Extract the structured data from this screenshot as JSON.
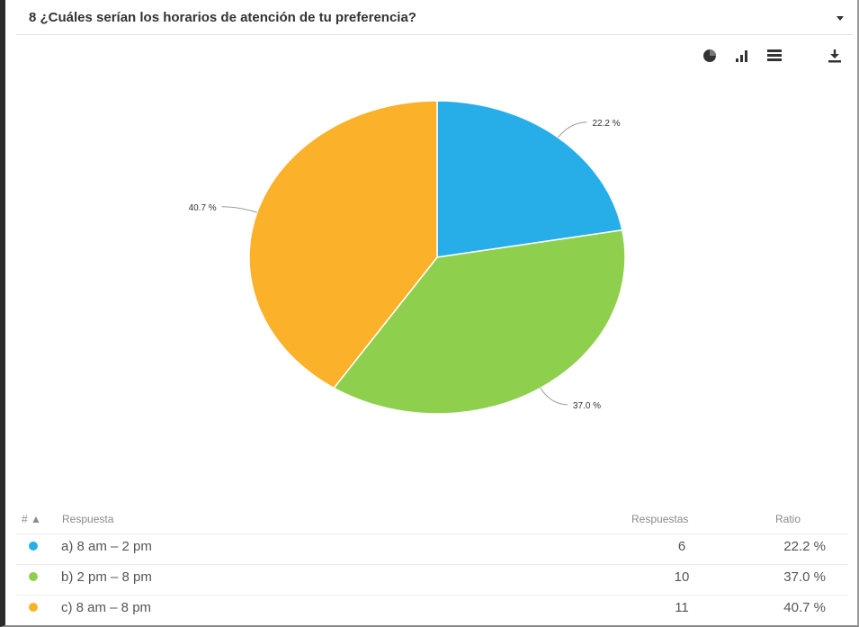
{
  "question": {
    "title": "8 ¿Cuáles serían los horarios de atención de tu preferencia?"
  },
  "toolbar": {
    "icons": [
      "pie-chart-icon",
      "bar-chart-icon",
      "table-icon",
      "download-icon"
    ]
  },
  "chart_data": {
    "type": "pie",
    "categories": [
      "a) 8 am – 2 pm",
      "b) 2 pm – 8 pm",
      "c) 8 am – 8 pm"
    ],
    "values": [
      22.2,
      37.0,
      40.7
    ],
    "labels": [
      "22.2 %",
      "37.0 %",
      "40.7 %"
    ],
    "colors": [
      "#27aee8",
      "#8ed04e",
      "#fbb129"
    ]
  },
  "table": {
    "headers": {
      "num": "# ▲",
      "answer": "Respuesta",
      "responses": "Respuestas",
      "ratio": "Ratio"
    },
    "rows": [
      {
        "label": "a) 8 am – 2 pm",
        "responses": "6",
        "ratio": "22.2 %",
        "color": "#27aee8"
      },
      {
        "label": "b) 2 pm – 8 pm",
        "responses": "10",
        "ratio": "37.0 %",
        "color": "#8ed04e"
      },
      {
        "label": "c) 8 am – 8 pm",
        "responses": "11",
        "ratio": "40.7 %",
        "color": "#fbb129"
      }
    ]
  }
}
